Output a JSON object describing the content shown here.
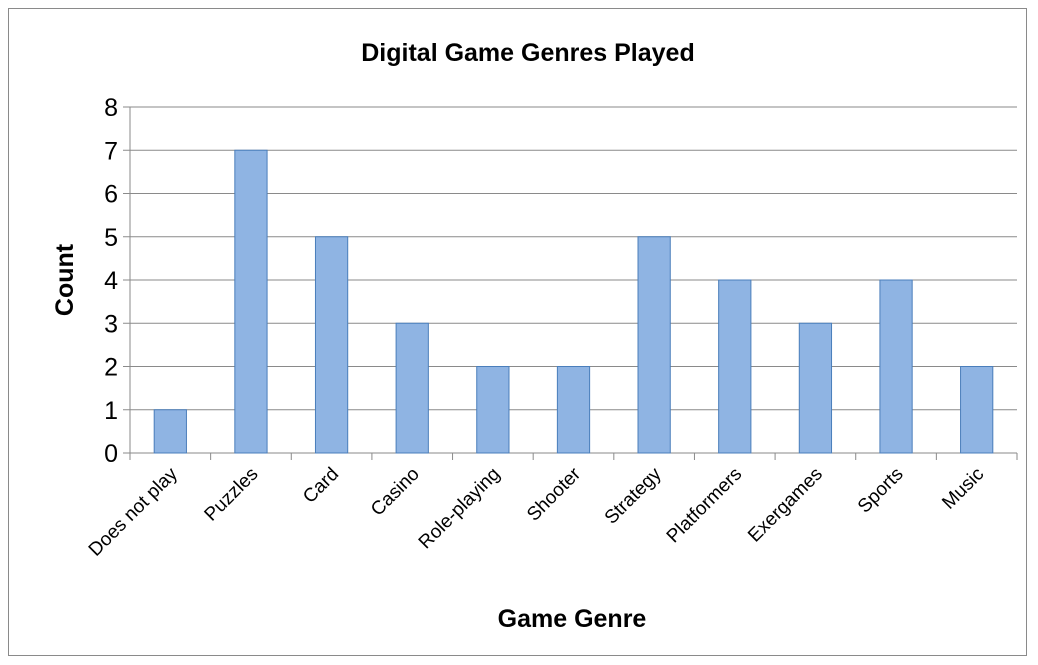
{
  "chart_data": {
    "type": "bar",
    "title": "Digital Game Genres Played",
    "xlabel": "Game Genre",
    "ylabel": "Count",
    "categories": [
      "Does not play",
      "Puzzles",
      "Card",
      "Casino",
      "Role-playing",
      "Shooter",
      "Strategy",
      "Platformers",
      "Exergames",
      "Sports",
      "Music"
    ],
    "values": [
      1,
      7,
      5,
      3,
      2,
      2,
      5,
      4,
      3,
      4,
      2
    ],
    "ylim": [
      0,
      8
    ],
    "yticks": [
      "0",
      "1",
      "2",
      "3",
      "4",
      "5",
      "6",
      "7",
      "8"
    ],
    "grid": true,
    "legend": "none",
    "colors": {
      "bar_fill": "#8fb4e3",
      "bar_stroke": "#4a7ebb",
      "grid": "#8a8a8a"
    }
  }
}
